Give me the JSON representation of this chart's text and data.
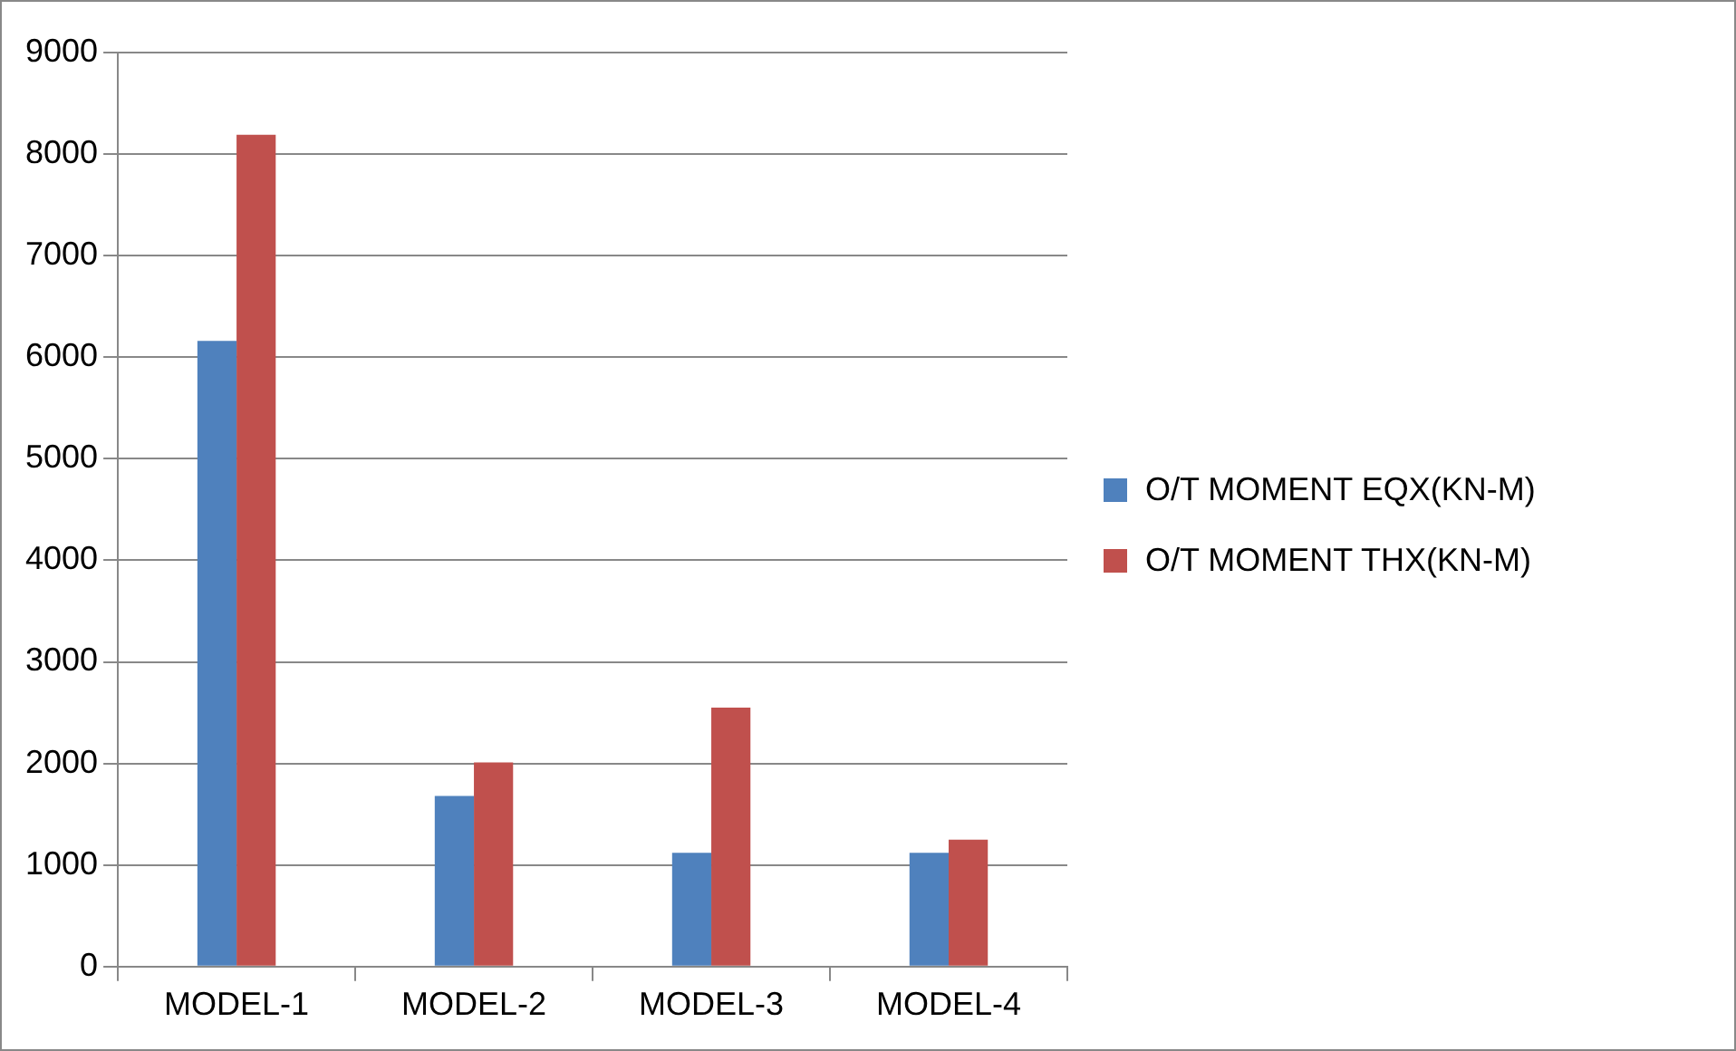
{
  "chart_data": {
    "type": "bar",
    "categories": [
      "MODEL-1",
      "MODEL-2",
      "MODEL-3",
      "MODEL-4"
    ],
    "series": [
      {
        "name": "O/T MOMENT EQX(KN-M)",
        "color": "#4f81bd",
        "values": [
          6160,
          1680,
          1120,
          1120
        ]
      },
      {
        "name": "O/T MOMENT THX(KN-M)",
        "color": "#c0504d",
        "values": [
          8190,
          2010,
          2550,
          1250
        ]
      }
    ],
    "ylim": [
      0,
      9000
    ],
    "yticks": [
      0,
      1000,
      2000,
      3000,
      4000,
      5000,
      6000,
      7000,
      8000,
      9000
    ],
    "grid": "y",
    "legend": "right"
  }
}
